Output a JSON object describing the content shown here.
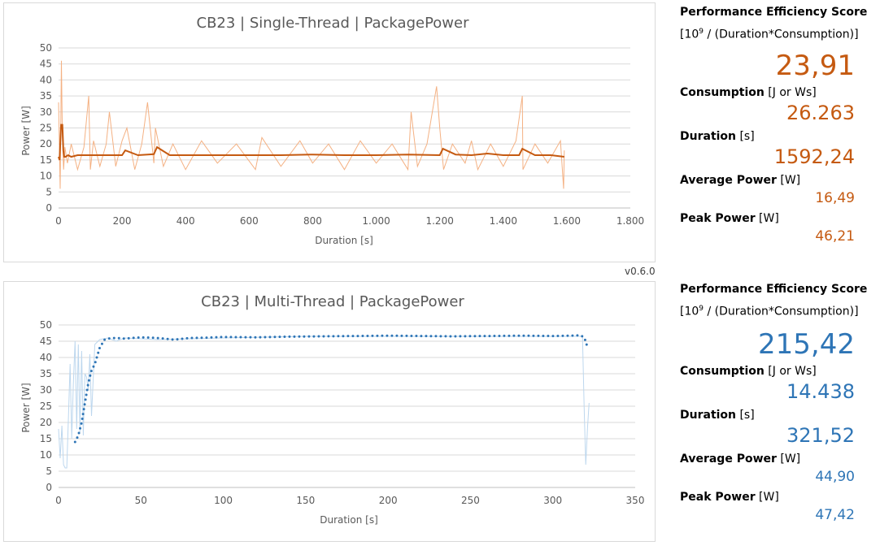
{
  "version_label": "v0.6.0",
  "chart_data": [
    {
      "type": "line",
      "title": "CB23 | Single-Thread | PackagePower",
      "xlabel": "Duration [s]",
      "ylabel": "Power [W]",
      "xlim": [
        0,
        1800
      ],
      "ylim": [
        0,
        50
      ],
      "x_ticks": [
        "0",
        "200",
        "400",
        "600",
        "800",
        "1.000",
        "1.200",
        "1.400",
        "1.600",
        "1.800"
      ],
      "y_ticks": [
        "0",
        "5",
        "10",
        "15",
        "20",
        "25",
        "30",
        "35",
        "40",
        "45",
        "50"
      ],
      "grid": "horizontal",
      "legend": "none",
      "color_raw": "#f4b183",
      "color_avg": "#c55a11",
      "series": [
        {
          "kind": "raw",
          "x": [
            0,
            5,
            9,
            12,
            16,
            20,
            28,
            40,
            60,
            80,
            95,
            100,
            110,
            130,
            150,
            160,
            180,
            200,
            215,
            240,
            262,
            280,
            300,
            305,
            330,
            360,
            400,
            450,
            500,
            560,
            620,
            640,
            700,
            760,
            800,
            850,
            900,
            950,
            1000,
            1050,
            1100,
            1110,
            1130,
            1160,
            1190,
            1200,
            1212,
            1240,
            1280,
            1300,
            1320,
            1360,
            1400,
            1440,
            1460,
            1462,
            1500,
            1540,
            1580,
            1590,
            1592
          ],
          "y": [
            33,
            6,
            46,
            22,
            12,
            19,
            14,
            20,
            12,
            19,
            35,
            12,
            21,
            13,
            20,
            30,
            13,
            21,
            25,
            12,
            20,
            33,
            14,
            25,
            13,
            20,
            12,
            21,
            14,
            20,
            12,
            22,
            13,
            21,
            14,
            20,
            12,
            21,
            14,
            20,
            12,
            30,
            13,
            20,
            38,
            25,
            12,
            20,
            14,
            21,
            12,
            20,
            13,
            21,
            35,
            12,
            20,
            14,
            21,
            6,
            18
          ]
        },
        {
          "kind": "moving-average",
          "x": [
            0,
            3,
            8,
            12,
            15,
            18,
            22,
            30,
            40,
            60,
            100,
            150,
            200,
            210,
            250,
            300,
            310,
            350,
            400,
            500,
            600,
            700,
            800,
            900,
            1000,
            1100,
            1200,
            1210,
            1250,
            1300,
            1350,
            1400,
            1450,
            1460,
            1500,
            1550,
            1592
          ],
          "y": [
            16,
            15,
            26,
            26,
            18,
            16,
            16,
            16.5,
            16,
            16.5,
            16.5,
            16.5,
            16.5,
            18,
            16.5,
            16.8,
            19,
            16.5,
            16.5,
            16.5,
            16.5,
            16.5,
            16.7,
            16.5,
            16.5,
            16.7,
            16.5,
            18.5,
            16.7,
            16.5,
            17,
            16.5,
            16.5,
            18.5,
            16.5,
            16.5,
            16
          ]
        }
      ]
    },
    {
      "type": "line",
      "title": "CB23 | Multi-Thread | PackagePower",
      "xlabel": "Duration [s]",
      "ylabel": "Power [W]",
      "xlim": [
        0,
        350
      ],
      "ylim": [
        0,
        50
      ],
      "x_ticks": [
        "0",
        "50",
        "100",
        "150",
        "200",
        "250",
        "300",
        "350"
      ],
      "y_ticks": [
        "0",
        "5",
        "10",
        "15",
        "20",
        "25",
        "30",
        "35",
        "40",
        "45",
        "50"
      ],
      "grid": "horizontal",
      "legend": "none",
      "color_raw": "#bdd7ee",
      "color_avg": "#2e75b6",
      "series": [
        {
          "kind": "raw",
          "x": [
            0,
            1,
            2,
            3,
            4,
            5,
            6,
            7,
            8,
            9,
            10,
            11,
            12,
            13,
            14,
            15,
            16,
            17,
            18,
            19,
            20,
            22,
            25,
            30,
            35,
            40,
            60,
            100,
            150,
            200,
            250,
            300,
            318,
            319,
            320,
            321,
            322
          ],
          "y": [
            18,
            9,
            19,
            7,
            6,
            6,
            22,
            38,
            15,
            32,
            45,
            18,
            44,
            17,
            42,
            16,
            35,
            34,
            30,
            41,
            22,
            44,
            45.5,
            46,
            45,
            46,
            45.5,
            46,
            46.5,
            46.5,
            46.5,
            46.5,
            46.5,
            25,
            7,
            18,
            26
          ]
        },
        {
          "kind": "moving-average",
          "x": [
            10,
            12,
            14,
            16,
            18,
            20,
            22,
            25,
            28,
            30,
            32,
            35,
            40,
            50,
            60,
            70,
            80,
            90,
            100,
            120,
            140,
            160,
            180,
            200,
            220,
            240,
            260,
            280,
            300,
            310,
            316,
            318,
            319,
            320,
            321
          ],
          "y": [
            14,
            16,
            20,
            26,
            32,
            36,
            38,
            43,
            45.5,
            45.8,
            45.9,
            46,
            45.8,
            46.2,
            46,
            45.5,
            46,
            46.1,
            46.3,
            46.2,
            46.4,
            46.5,
            46.6,
            46.7,
            46.6,
            46.5,
            46.6,
            46.7,
            46.6,
            46.7,
            46.8,
            46.5,
            46,
            45,
            43
          ]
        }
      ]
    }
  ],
  "stats": [
    {
      "score_label": "Performance Efficiency Score",
      "formula_prefix": "[10",
      "formula_exp": "9",
      "formula_suffix": " / (Duration*Consumption)]",
      "score_value": "23,91",
      "consumption_label": "Consumption",
      "consumption_unit": " [J or Ws]",
      "consumption_value": "26.263",
      "duration_label": "Duration",
      "duration_unit": " [s]",
      "duration_value": "1592,24",
      "avg_label": "Average Power",
      "avg_unit": " [W]",
      "avg_value": "16,49",
      "peak_label": "Peak Power",
      "peak_unit": " [W]",
      "peak_value": "46,21"
    },
    {
      "score_label": "Performance Efficiency Score",
      "formula_prefix": "[10",
      "formula_exp": "9",
      "formula_suffix": " / (Duration*Consumption)]",
      "score_value": "215,42",
      "consumption_label": "Consumption",
      "consumption_unit": " [J or Ws]",
      "consumption_value": "14.438",
      "duration_label": "Duration",
      "duration_unit": " [s]",
      "duration_value": "321,52",
      "avg_label": "Average Power",
      "avg_unit": " [W]",
      "avg_value": "44,90",
      "peak_label": "Peak Power",
      "peak_unit": " [W]",
      "peak_value": "47,42"
    }
  ]
}
